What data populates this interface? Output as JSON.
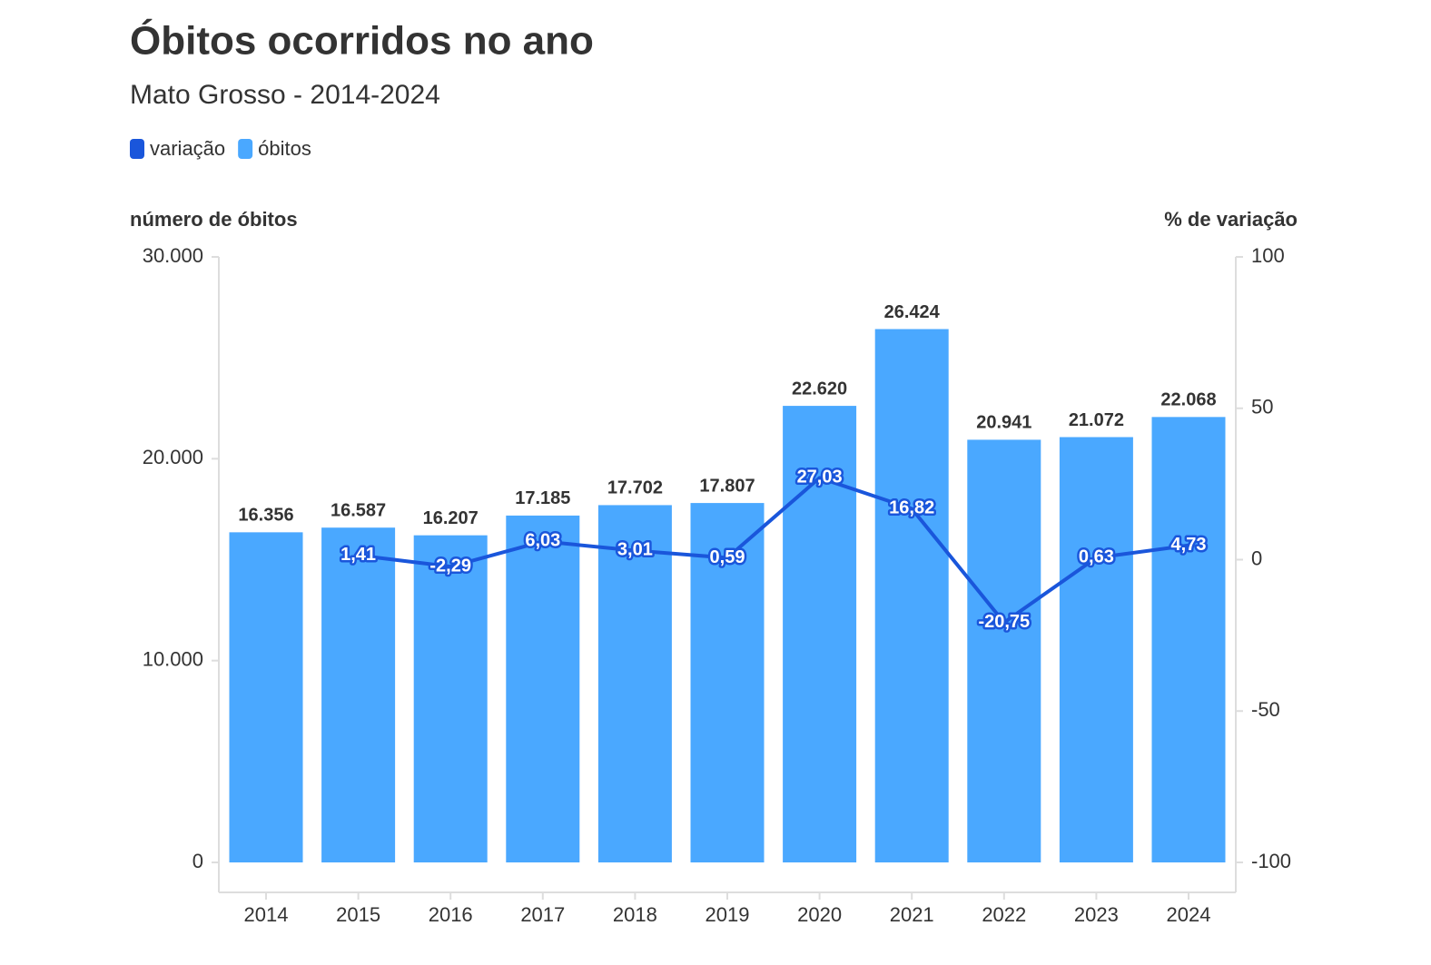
{
  "chart_data": {
    "type": "combo",
    "title": "Óbitos ocorridos no ano",
    "subtitle": "Mato Grosso - 2014-2024",
    "y_label": "número de óbitos",
    "y2_label": "% de variação",
    "categories": [
      "2014",
      "2015",
      "2016",
      "2017",
      "2018",
      "2019",
      "2020",
      "2021",
      "2022",
      "2023",
      "2024"
    ],
    "series": [
      {
        "name": "variação",
        "type": "line",
        "axis": "y2",
        "color": "#1a56db",
        "values": [
          null,
          1.41,
          -2.29,
          6.03,
          3.01,
          0.59,
          27.03,
          16.82,
          -20.75,
          0.63,
          4.73
        ],
        "value_labels": [
          null,
          "1,41",
          "-2,29",
          "6,03",
          "3,01",
          "0,59",
          "27,03",
          "16,82",
          "-20,75",
          "0,63",
          "4,73"
        ]
      },
      {
        "name": "óbitos",
        "type": "bar",
        "color": "#4aa8ff",
        "values": [
          16356,
          16587,
          16207,
          17185,
          17702,
          17807,
          22620,
          26424,
          20941,
          21072,
          22068
        ],
        "value_labels": [
          "16.356",
          "16.587",
          "16.207",
          "17.185",
          "17.702",
          "17.807",
          "22.620",
          "26.424",
          "20.941",
          "21.072",
          "22.068"
        ]
      }
    ],
    "ylim": [
      0,
      30000
    ],
    "yticks": [
      0,
      {
        "value": 10000,
        "label": "10.000"
      },
      {
        "value": 20000,
        "label": "20.000"
      },
      {
        "value": 30000,
        "label": "30.000"
      }
    ],
    "y2lim": [
      -100,
      100
    ],
    "y2ticks": [
      -100,
      -50,
      0,
      50,
      100
    ]
  }
}
